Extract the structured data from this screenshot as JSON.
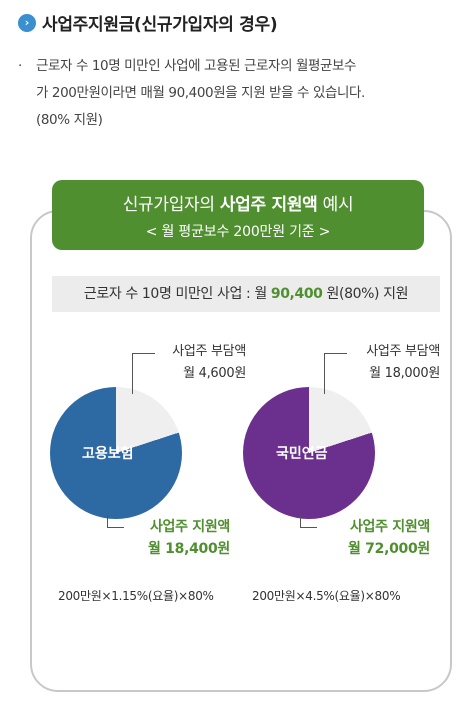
{
  "section": {
    "title": "사업주지원금(신규가입자의 경우)"
  },
  "description": {
    "bullet": "·",
    "lines": [
      "근로자 수 10명 미만인 사업에 고용된 근로자의 월평균보수",
      "가 200만원이라면 매월 90,400원을 지원 받을 수 있습니다.",
      "(80% 지원)"
    ]
  },
  "example": {
    "title_prefix": "신규가입자의 ",
    "title_bold": "사업주 지원액",
    "title_suffix": " 예시",
    "subtitle": "< 월 평균보수 200만원 기준 >",
    "summary_prefix": "근로자 수 10명 미만인 사업 : 월 ",
    "summary_amount": "90,400",
    "summary_suffix": " 원(80%) 지원"
  },
  "chart_data": {
    "type": "pie",
    "charts": [
      {
        "name": "고용보험",
        "slices": [
          {
            "label": "사업주 지원액",
            "value": 18400,
            "display": "월 18,400원"
          },
          {
            "label": "사업주 부담액",
            "value": 4600,
            "display": "월 4,600원"
          }
        ],
        "formula": "200만원×1.15%(요율)×80%"
      },
      {
        "name": "국민연금",
        "slices": [
          {
            "label": "사업주 지원액",
            "value": 72000,
            "display": "월 72,000원"
          },
          {
            "label": "사업주 부담액",
            "value": 18000,
            "display": "월 18,000원"
          }
        ],
        "formula": "200만원×4.5%(요율)×80%"
      }
    ],
    "colors": {
      "employment": "#2d6aa3",
      "pension": "#6b2f8e",
      "burden": "#efefef",
      "accent": "#4f8f2f"
    }
  }
}
